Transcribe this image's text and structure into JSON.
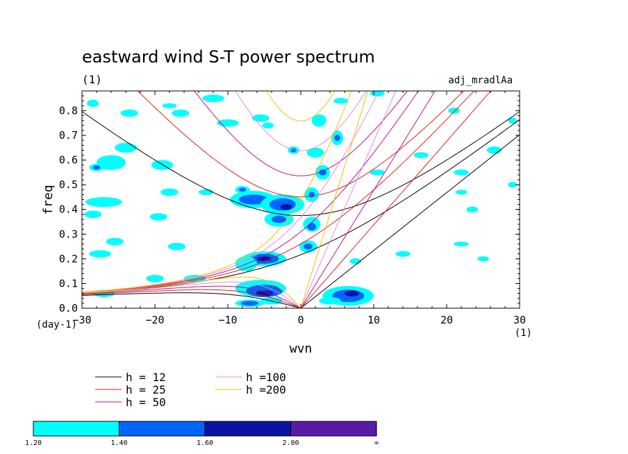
{
  "chart_data": {
    "type": "contour",
    "title": "eastward wind S-T power spectrum",
    "left_subtitle": "(1)",
    "right_subtitle": "adj_mradlAa",
    "xlabel": "wvn",
    "ylabel": "freq",
    "x_unit_label": "(1)",
    "y_unit_label": "(day-1)",
    "xlim": [
      -30,
      30
    ],
    "ylim": [
      0,
      0.88
    ],
    "x_ticks": [
      -30,
      -20,
      -10,
      0,
      10,
      20,
      30
    ],
    "x_tick_labels": [
      "-30",
      "-20",
      "-10",
      "0",
      "10",
      "20",
      "30"
    ],
    "y_ticks": [
      0.0,
      0.1,
      0.2,
      0.3,
      0.4,
      0.5,
      0.6,
      0.7,
      0.8
    ],
    "y_tick_labels": [
      "0.0",
      "0.1",
      "0.2",
      "0.3",
      "0.4",
      "0.5",
      "0.6",
      "0.7",
      "0.8"
    ],
    "dispersion_curves": [
      {
        "label": "h = 12",
        "h": 12,
        "color": "#000000"
      },
      {
        "label": "h = 25",
        "h": 25,
        "color": "#e0201a"
      },
      {
        "label": "h = 50",
        "h": 50,
        "color": "#c0108a"
      },
      {
        "label": "h =100",
        "h": 100,
        "color": "#e08ee0"
      },
      {
        "label": "h =200",
        "h": 200,
        "color": "#f0c000"
      }
    ],
    "colorbar": {
      "levels": [
        "1.20",
        "1.40",
        "1.60",
        "2.00",
        "∞"
      ],
      "colors": [
        "#00ffff",
        "#0064ff",
        "#0a14a0",
        "#5a1aa8"
      ]
    },
    "contour_regions": [
      {
        "level": 0,
        "x": -6.5,
        "y": 0.44,
        "rx": 3.2,
        "ry": 0.035
      },
      {
        "level": 1,
        "x": -6.5,
        "y": 0.44,
        "rx": 2.0,
        "ry": 0.02
      },
      {
        "level": 0,
        "x": -2.5,
        "y": 0.42,
        "rx": 3.0,
        "ry": 0.04
      },
      {
        "level": 1,
        "x": -2.5,
        "y": 0.42,
        "rx": 1.8,
        "ry": 0.025
      },
      {
        "level": 2,
        "x": -2.0,
        "y": 0.41,
        "rx": 0.8,
        "ry": 0.012
      },
      {
        "level": 0,
        "x": -3.0,
        "y": 0.36,
        "rx": 2.0,
        "ry": 0.03
      },
      {
        "level": 1,
        "x": -3.0,
        "y": 0.36,
        "rx": 1.0,
        "ry": 0.015
      },
      {
        "level": 0,
        "x": -5.0,
        "y": 0.2,
        "rx": 3.0,
        "ry": 0.03
      },
      {
        "level": 1,
        "x": -5.0,
        "y": 0.2,
        "rx": 2.0,
        "ry": 0.02
      },
      {
        "level": 2,
        "x": -5.0,
        "y": 0.2,
        "rx": 1.0,
        "ry": 0.01
      },
      {
        "level": 0,
        "x": -7.5,
        "y": 0.18,
        "rx": 1.5,
        "ry": 0.03
      },
      {
        "level": 0,
        "x": -5.5,
        "y": 0.08,
        "rx": 3.5,
        "ry": 0.035
      },
      {
        "level": 1,
        "x": -5.0,
        "y": 0.07,
        "rx": 2.5,
        "ry": 0.025
      },
      {
        "level": 2,
        "x": -5.0,
        "y": 0.06,
        "rx": 1.2,
        "ry": 0.012
      },
      {
        "level": 0,
        "x": -7.0,
        "y": 0.02,
        "rx": 2.0,
        "ry": 0.015
      },
      {
        "level": 1,
        "x": -7.0,
        "y": 0.02,
        "rx": 1.2,
        "ry": 0.01
      },
      {
        "level": 0,
        "x": -4.0,
        "y": 0.03,
        "rx": 1.5,
        "ry": 0.015
      },
      {
        "level": 0,
        "x": 6.5,
        "y": 0.05,
        "rx": 3.5,
        "ry": 0.04
      },
      {
        "level": 1,
        "x": 6.5,
        "y": 0.05,
        "rx": 2.2,
        "ry": 0.025
      },
      {
        "level": 2,
        "x": 7.0,
        "y": 0.06,
        "rx": 1.0,
        "ry": 0.012
      },
      {
        "level": 0,
        "x": 4.0,
        "y": 0.03,
        "rx": 1.5,
        "ry": 0.015
      },
      {
        "level": 0,
        "x": 1.5,
        "y": 0.34,
        "rx": 1.2,
        "ry": 0.03
      },
      {
        "level": 1,
        "x": 1.5,
        "y": 0.33,
        "rx": 0.6,
        "ry": 0.015
      },
      {
        "level": 0,
        "x": 1.0,
        "y": 0.25,
        "rx": 1.2,
        "ry": 0.025
      },
      {
        "level": 1,
        "x": 1.0,
        "y": 0.25,
        "rx": 0.6,
        "ry": 0.012
      },
      {
        "level": 0,
        "x": 1.5,
        "y": 0.46,
        "rx": 1.0,
        "ry": 0.03
      },
      {
        "level": 1,
        "x": 1.5,
        "y": 0.46,
        "rx": 0.4,
        "ry": 0.012
      },
      {
        "level": 0,
        "x": 3.0,
        "y": 0.55,
        "rx": 1.0,
        "ry": 0.03
      },
      {
        "level": 1,
        "x": 3.0,
        "y": 0.55,
        "rx": 0.5,
        "ry": 0.012
      },
      {
        "level": 0,
        "x": 2.5,
        "y": 0.76,
        "rx": 1.0,
        "ry": 0.025
      },
      {
        "level": 0,
        "x": 5.0,
        "y": 0.69,
        "rx": 0.8,
        "ry": 0.03
      },
      {
        "level": 1,
        "x": 5.0,
        "y": 0.69,
        "rx": 0.4,
        "ry": 0.012
      },
      {
        "level": 0,
        "x": 2.0,
        "y": 0.63,
        "rx": 1.2,
        "ry": 0.02
      },
      {
        "level": 0,
        "x": -1.0,
        "y": 0.64,
        "rx": 0.8,
        "ry": 0.015
      },
      {
        "level": 1,
        "x": -1.0,
        "y": 0.64,
        "rx": 0.4,
        "ry": 0.008
      },
      {
        "level": 0,
        "x": -8.0,
        "y": 0.48,
        "rx": 1.0,
        "ry": 0.015
      },
      {
        "level": 1,
        "x": -8.0,
        "y": 0.48,
        "rx": 0.5,
        "ry": 0.008
      },
      {
        "level": 0,
        "x": -26.0,
        "y": 0.59,
        "rx": 2.0,
        "ry": 0.03
      },
      {
        "level": 0,
        "x": -28.0,
        "y": 0.57,
        "rx": 1.0,
        "ry": 0.015
      },
      {
        "level": 1,
        "x": -28.0,
        "y": 0.57,
        "rx": 0.5,
        "ry": 0.008
      },
      {
        "level": 0,
        "x": -24.0,
        "y": 0.65,
        "rx": 1.5,
        "ry": 0.02
      },
      {
        "level": 0,
        "x": -19.0,
        "y": 0.58,
        "rx": 1.5,
        "ry": 0.02
      },
      {
        "level": 0,
        "x": -27.0,
        "y": 0.43,
        "rx": 2.5,
        "ry": 0.02
      },
      {
        "level": 0,
        "x": -28.5,
        "y": 0.38,
        "rx": 1.2,
        "ry": 0.015
      },
      {
        "level": 0,
        "x": -19.5,
        "y": 0.37,
        "rx": 1.2,
        "ry": 0.015
      },
      {
        "level": 0,
        "x": -18.0,
        "y": 0.47,
        "rx": 1.2,
        "ry": 0.015
      },
      {
        "level": 0,
        "x": -25.5,
        "y": 0.27,
        "rx": 1.2,
        "ry": 0.015
      },
      {
        "level": 0,
        "x": -27.5,
        "y": 0.22,
        "rx": 1.5,
        "ry": 0.015
      },
      {
        "level": 0,
        "x": -23.5,
        "y": 0.79,
        "rx": 1.2,
        "ry": 0.015
      },
      {
        "level": 0,
        "x": -28.5,
        "y": 0.83,
        "rx": 0.8,
        "ry": 0.015
      },
      {
        "level": 0,
        "x": -16.5,
        "y": 0.79,
        "rx": 1.2,
        "ry": 0.015
      },
      {
        "level": 0,
        "x": -18.0,
        "y": 0.82,
        "rx": 1.0,
        "ry": 0.01
      },
      {
        "level": 0,
        "x": -5.5,
        "y": 0.77,
        "rx": 1.2,
        "ry": 0.015
      },
      {
        "level": 0,
        "x": -4.5,
        "y": 0.74,
        "rx": 0.8,
        "ry": 0.012
      },
      {
        "level": 0,
        "x": -10.0,
        "y": 0.75,
        "rx": 1.5,
        "ry": 0.015
      },
      {
        "level": 0,
        "x": -12.0,
        "y": 0.85,
        "rx": 1.5,
        "ry": 0.015
      },
      {
        "level": 0,
        "x": -17.0,
        "y": 0.25,
        "rx": 1.2,
        "ry": 0.015
      },
      {
        "level": 0,
        "x": -20.0,
        "y": 0.12,
        "rx": 1.2,
        "ry": 0.015
      },
      {
        "level": 0,
        "x": -14.5,
        "y": 0.12,
        "rx": 1.5,
        "ry": 0.015
      },
      {
        "level": 0,
        "x": -13.0,
        "y": 0.47,
        "rx": 1.0,
        "ry": 0.012
      },
      {
        "level": 0,
        "x": 10.5,
        "y": 0.87,
        "rx": 1.0,
        "ry": 0.012
      },
      {
        "level": 0,
        "x": 10.5,
        "y": 0.55,
        "rx": 1.0,
        "ry": 0.012
      },
      {
        "level": 0,
        "x": 14.0,
        "y": 0.22,
        "rx": 1.0,
        "ry": 0.012
      },
      {
        "level": 0,
        "x": 21.0,
        "y": 0.8,
        "rx": 0.8,
        "ry": 0.012
      },
      {
        "level": 0,
        "x": 22.0,
        "y": 0.55,
        "rx": 1.0,
        "ry": 0.012
      },
      {
        "level": 0,
        "x": 22.0,
        "y": 0.47,
        "rx": 0.8,
        "ry": 0.01
      },
      {
        "level": 0,
        "x": 23.5,
        "y": 0.4,
        "rx": 0.8,
        "ry": 0.012
      },
      {
        "level": 0,
        "x": 26.5,
        "y": 0.64,
        "rx": 1.0,
        "ry": 0.015
      },
      {
        "level": 0,
        "x": 29.0,
        "y": 0.5,
        "rx": 0.6,
        "ry": 0.012
      },
      {
        "level": 0,
        "x": 29.0,
        "y": 0.76,
        "rx": 0.6,
        "ry": 0.012
      },
      {
        "level": 0,
        "x": 22.0,
        "y": 0.26,
        "rx": 1.0,
        "ry": 0.01
      },
      {
        "level": 0,
        "x": 16.5,
        "y": 0.62,
        "rx": 1.0,
        "ry": 0.012
      },
      {
        "level": 0,
        "x": 5.5,
        "y": 0.84,
        "rx": 1.0,
        "ry": 0.012
      },
      {
        "level": 0,
        "x": -27.0,
        "y": 0.06,
        "rx": 1.5,
        "ry": 0.015
      },
      {
        "level": 0,
        "x": 25.0,
        "y": 0.2,
        "rx": 0.8,
        "ry": 0.01
      },
      {
        "level": 0,
        "x": 7.5,
        "y": 0.19,
        "rx": 0.8,
        "ry": 0.012
      }
    ]
  }
}
